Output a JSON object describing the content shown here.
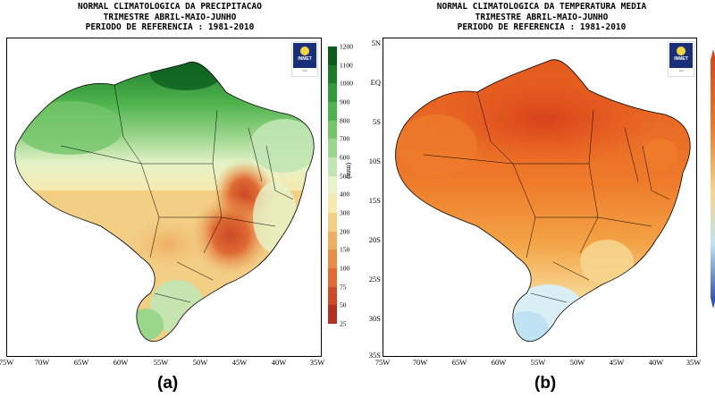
{
  "panels": [
    {
      "id": "a",
      "title_lines": [
        "NORMAL CLIMATOLOGICA DA PRECIPITACAO",
        "TRIMESTRE ABRIL-MAIO-JUNHO",
        "PERIODO DE REFERENCIA : 1981-2010"
      ],
      "caption": "(a)",
      "x_ticks": [
        "75W",
        "70W",
        "65W",
        "60W",
        "55W",
        "50W",
        "45W",
        "40W",
        "35W"
      ],
      "colorbar": {
        "unit": "(mm)",
        "labels": [
          "1200",
          "1100",
          "1000",
          "900",
          "800",
          "700",
          "600",
          "500",
          "400",
          "300",
          "200",
          "150",
          "100",
          "75",
          "50",
          "25"
        ],
        "colors": [
          "#0b5d1e",
          "#1a7a2a",
          "#2e9a3a",
          "#4fb34d",
          "#74c66a",
          "#9bd68d",
          "#c1e6b4",
          "#e6f3c8",
          "#f5e9b0",
          "#f3cf86",
          "#eeae61",
          "#e88c45",
          "#df6a33",
          "#cc4a27",
          "#b3311f"
        ]
      }
    },
    {
      "id": "b",
      "title_lines": [
        "NORMAL CLIMATOLOGICA DA TEMPERATURA MEDIA",
        "TRIMESTRE ABRIL-MAIO-JUNHO",
        "PERIODO DE REFERENCIA : 1981-2010"
      ],
      "caption": "(b)",
      "x_ticks": [
        "75W",
        "70W",
        "65W",
        "60W",
        "55W",
        "50W",
        "45W",
        "40W",
        "35W"
      ],
      "y_ticks": [
        "5N",
        "EQ",
        "5S",
        "10S",
        "15S",
        "20S",
        "25S",
        "30S",
        "35S"
      ]
    }
  ],
  "logo": {
    "label": "INMET",
    "number": "100"
  },
  "colors": {
    "ocean": "#ffffff",
    "border": "#000000",
    "wet_green": "#2e9a3a",
    "dry_orange": "#e88c45",
    "hot_red": "#e2531d",
    "cool_blue": "#bfe3f2"
  }
}
